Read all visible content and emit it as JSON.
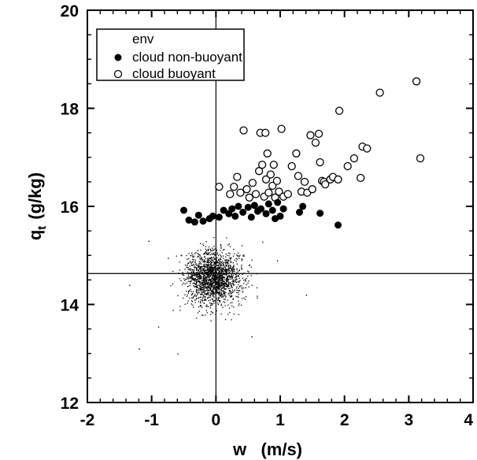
{
  "chart_data": {
    "type": "scatter",
    "xlabel": "w   (m/s)",
    "ylabel": "q",
    "ylabel_subscript": "t",
    "ylabel_units": "(g/kg)",
    "xlim": [
      -2,
      4
    ],
    "ylim": [
      12,
      20
    ],
    "xticks": [
      "-2",
      "-1",
      "0",
      "1",
      "2",
      "3",
      "4"
    ],
    "yticks": [
      "12",
      "14",
      "16",
      "18",
      "20"
    ],
    "reference_lines": {
      "x": 0,
      "y": 14.63
    },
    "legend_position": "top-left",
    "series": [
      {
        "name": "env",
        "marker": "dot",
        "distribution": {
          "x_mean": -0.05,
          "x_sd": 0.22,
          "y_mean": 14.55,
          "y_sd": 0.27,
          "count": 1800,
          "seed": 7
        },
        "points": [
          [
            -1.2,
            13.1
          ],
          [
            -0.9,
            13.55
          ],
          [
            -1.05,
            15.3
          ],
          [
            0.72,
            15.28
          ],
          [
            1.4,
            14.2
          ],
          [
            -0.75,
            14.95
          ],
          [
            0.55,
            13.35
          ],
          [
            -0.6,
            13.0
          ],
          [
            0.95,
            14.9
          ],
          [
            -1.35,
            14.4
          ]
        ]
      },
      {
        "name": "cloud non-buoyant",
        "marker": "filled-circle",
        "points": [
          [
            -0.5,
            15.92
          ],
          [
            -0.42,
            15.72
          ],
          [
            -0.33,
            15.68
          ],
          [
            -0.27,
            15.82
          ],
          [
            -0.2,
            15.7
          ],
          [
            -0.1,
            15.75
          ],
          [
            -0.05,
            15.8
          ],
          [
            0.05,
            15.78
          ],
          [
            0.12,
            15.92
          ],
          [
            0.2,
            15.85
          ],
          [
            0.25,
            15.95
          ],
          [
            0.3,
            15.8
          ],
          [
            0.35,
            16.0
          ],
          [
            0.42,
            15.88
          ],
          [
            0.5,
            15.98
          ],
          [
            0.55,
            15.78
          ],
          [
            0.6,
            16.02
          ],
          [
            0.65,
            15.9
          ],
          [
            0.7,
            15.95
          ],
          [
            0.78,
            15.85
          ],
          [
            0.82,
            16.05
          ],
          [
            0.88,
            15.92
          ],
          [
            0.92,
            15.75
          ],
          [
            0.96,
            16.08
          ],
          [
            1.0,
            15.8
          ],
          [
            1.05,
            15.95
          ],
          [
            1.3,
            15.88
          ],
          [
            1.35,
            16.0
          ],
          [
            1.62,
            15.86
          ],
          [
            1.9,
            15.62
          ]
        ]
      },
      {
        "name": "cloud buoyant",
        "marker": "open-circle",
        "points": [
          [
            0.05,
            16.4
          ],
          [
            0.22,
            16.25
          ],
          [
            0.28,
            16.4
          ],
          [
            0.33,
            16.6
          ],
          [
            0.38,
            16.28
          ],
          [
            0.43,
            17.55
          ],
          [
            0.48,
            16.35
          ],
          [
            0.52,
            16.18
          ],
          [
            0.57,
            16.48
          ],
          [
            0.62,
            16.25
          ],
          [
            0.67,
            16.72
          ],
          [
            0.69,
            17.5
          ],
          [
            0.72,
            16.85
          ],
          [
            0.75,
            16.2
          ],
          [
            0.77,
            17.5
          ],
          [
            0.78,
            16.55
          ],
          [
            0.8,
            17.08
          ],
          [
            0.82,
            16.28
          ],
          [
            0.85,
            16.65
          ],
          [
            0.88,
            16.42
          ],
          [
            0.9,
            16.85
          ],
          [
            0.92,
            16.18
          ],
          [
            0.95,
            16.52
          ],
          [
            0.98,
            16.3
          ],
          [
            1.02,
            17.58
          ],
          [
            1.05,
            16.2
          ],
          [
            1.12,
            16.25
          ],
          [
            1.18,
            16.82
          ],
          [
            1.25,
            17.08
          ],
          [
            1.28,
            16.62
          ],
          [
            1.33,
            16.3
          ],
          [
            1.38,
            16.5
          ],
          [
            1.42,
            16.28
          ],
          [
            1.47,
            17.45
          ],
          [
            1.5,
            16.35
          ],
          [
            1.55,
            17.3
          ],
          [
            1.6,
            17.48
          ],
          [
            1.62,
            16.9
          ],
          [
            1.65,
            16.52
          ],
          [
            1.68,
            16.5
          ],
          [
            1.7,
            16.45
          ],
          [
            1.78,
            16.55
          ],
          [
            1.82,
            16.6
          ],
          [
            1.9,
            16.55
          ],
          [
            1.92,
            17.95
          ],
          [
            2.05,
            16.82
          ],
          [
            2.15,
            16.98
          ],
          [
            2.25,
            16.58
          ],
          [
            2.28,
            17.22
          ],
          [
            2.35,
            17.18
          ],
          [
            2.55,
            18.32
          ],
          [
            3.12,
            18.55
          ],
          [
            3.18,
            16.98
          ]
        ]
      }
    ]
  }
}
